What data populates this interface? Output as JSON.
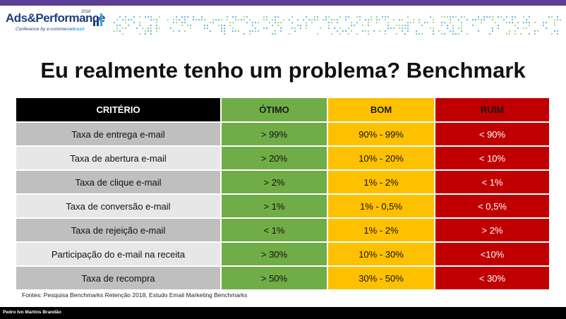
{
  "header": {
    "logo_main": "Ads&Performance",
    "logo_year": "2018",
    "logo_sub_prefix": "Conference by e-commerce",
    "logo_sub_brand": "brasil",
    "accent_color": "#5b3e96"
  },
  "slide": {
    "title": "Eu realmente tenho um problema? Benchmark"
  },
  "table": {
    "headers": [
      "CRITÉRIO",
      "ÓTIMO",
      "BOM",
      "RUIM"
    ],
    "rows": [
      [
        "Taxa de entrega e-mail",
        "> 99%",
        "90% - 99%",
        "< 90%"
      ],
      [
        "Taxa de abertura e-mail",
        "> 20%",
        "10% - 20%",
        "< 10%"
      ],
      [
        "Taxa de clique e-mail",
        "> 2%",
        "1% - 2%",
        "< 1%"
      ],
      [
        "Taxa de conversão  e-mail",
        "> 1%",
        "1% - 0,5%",
        "< 0,5%"
      ],
      [
        "Taxa de rejeição e-mail",
        "< 1%",
        "1% - 2%",
        "> 2%"
      ],
      [
        "Participação do e-mail na receita",
        "> 30%",
        "10% - 30%",
        "<10%"
      ],
      [
        "Taxa de recompra",
        "> 50%",
        "30% - 50%",
        "< 30%"
      ]
    ],
    "colors": {
      "otimo": "#70ad47",
      "bom": "#ffc000",
      "ruim": "#c00000",
      "header": "#000000"
    }
  },
  "sources": "Fontes: Pesquisa Benchmarks Retenção 2018, Estudo Email Marketing Benchmarks",
  "footer": {
    "author": "Pedro Ivo Martins Brandão"
  }
}
